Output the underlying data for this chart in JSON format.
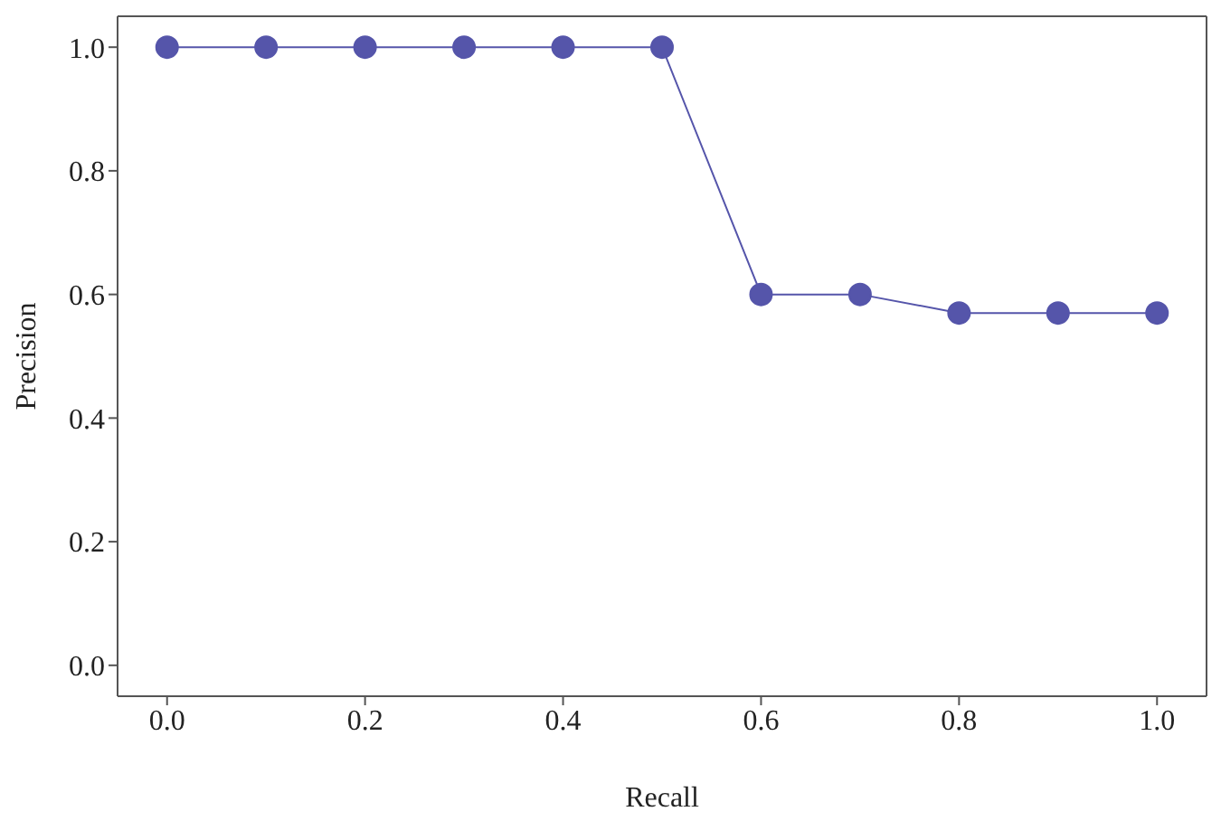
{
  "chart_data": {
    "type": "line",
    "xlabel": "Recall",
    "ylabel": "Precision",
    "x": [
      0,
      0.1,
      0.2,
      0.3,
      0.4,
      0.5,
      0.6,
      0.7,
      0.8,
      0.9,
      1.0
    ],
    "series": [
      {
        "color": "#5555aa",
        "values": [
          1,
          1,
          1,
          1,
          1,
          1,
          0.6,
          0.6,
          0.57,
          0.57,
          0.57
        ]
      }
    ],
    "xlim": [
      -0.05,
      1.05
    ],
    "ylim": [
      -0.05,
      1.05
    ],
    "xticks": [
      {
        "value": 0,
        "label": "0.0"
      },
      {
        "value": 0.2,
        "label": "0.2"
      },
      {
        "value": 0.4,
        "label": "0.4"
      },
      {
        "value": 0.6,
        "label": "0.6"
      },
      {
        "value": 0.8,
        "label": "0.8"
      },
      {
        "value": 1,
        "label": "1.0"
      }
    ],
    "yticks": [
      {
        "value": 0,
        "label": "0.0"
      },
      {
        "value": 0.2,
        "label": "0.2"
      },
      {
        "value": 0.4,
        "label": "0.4"
      },
      {
        "value": 0.6,
        "label": "0.6"
      },
      {
        "value": 0.8,
        "label": "0.8"
      },
      {
        "value": 1,
        "label": "1.0"
      }
    ],
    "marker": "circle",
    "line_style": "solid",
    "grid": false,
    "legend": false
  }
}
